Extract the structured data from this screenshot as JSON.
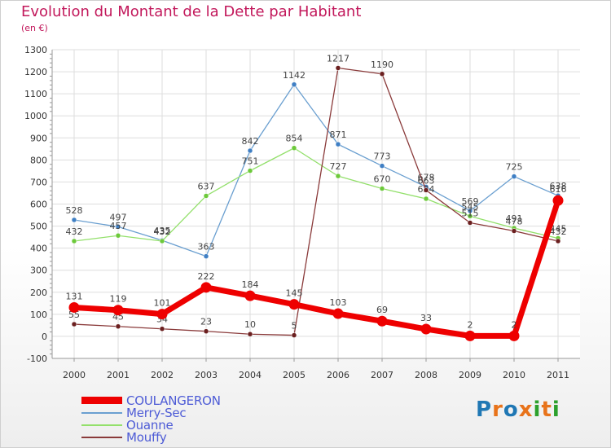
{
  "header": {
    "title": "Evolution du Montant de la Dette par Habitant",
    "subtitle": "(en €)"
  },
  "logo": {
    "text": "Proxiti",
    "colors": [
      "#1f77b4",
      "#e8731a",
      "#1f77b4",
      "#e8731a",
      "#2ca02c",
      "#e8731a",
      "#2ca02c"
    ]
  },
  "chart_data": {
    "type": "line",
    "x": [
      "2000",
      "2001",
      "2002",
      "2003",
      "2004",
      "2005",
      "2006",
      "2007",
      "2008",
      "2009",
      "2010",
      "2011"
    ],
    "ylim": [
      -100,
      1300
    ],
    "yticks": [
      "-100",
      "0",
      "100",
      "200",
      "300",
      "400",
      "500",
      "600",
      "700",
      "800",
      "900",
      "1000",
      "1100",
      "1200",
      "1300"
    ],
    "grid": true,
    "legend_position": "bottom-left",
    "series": [
      {
        "name": "Merry-Sec",
        "color": "#6a9fd0",
        "marker_color": "#3f7fc4",
        "values": [
          528,
          497,
          435,
          363,
          842,
          1142,
          871,
          773,
          678,
          569,
          725,
          638
        ],
        "labels": [
          "528",
          "497",
          "435",
          "363",
          "842",
          "1142",
          "871",
          "773",
          "678",
          "569",
          "725",
          "638"
        ]
      },
      {
        "name": "Ouanne",
        "color": "#93e06b",
        "marker_color": "#6cc93a",
        "values": [
          432,
          457,
          432,
          637,
          751,
          854,
          727,
          670,
          624,
          545,
          491,
          445
        ],
        "labels": [
          "432",
          "457",
          "432",
          "637",
          "751",
          "854",
          "727",
          "670",
          "624",
          "545",
          "491",
          "445"
        ]
      },
      {
        "name": "Mouffy",
        "color": "#8a3a3a",
        "marker_color": "#6b1f1f",
        "values": [
          55,
          45,
          34,
          23,
          10,
          5,
          1217,
          1190,
          663,
          515,
          478,
          432
        ],
        "labels": [
          "55",
          "45",
          "34",
          "23",
          "10",
          "5",
          "1217",
          "1190",
          "663",
          "515",
          "478",
          "432"
        ]
      },
      {
        "name": "COULANGERON",
        "color": "#ee0000",
        "marker_color": "#ee0000",
        "values": [
          131,
          119,
          101,
          222,
          184,
          145,
          103,
          69,
          33,
          2,
          2,
          616
        ],
        "labels": [
          "131",
          "119",
          "101",
          "222",
          "184",
          "145",
          "103",
          "69",
          "33",
          "2",
          "2",
          "616"
        ]
      }
    ]
  },
  "legend": [
    {
      "name": "COULANGERON",
      "color": "#ee0000"
    },
    {
      "name": "Merry-Sec",
      "color": "#6a9fd0"
    },
    {
      "name": "Ouanne",
      "color": "#93e06b"
    },
    {
      "name": "Mouffy",
      "color": "#8a3a3a"
    }
  ]
}
